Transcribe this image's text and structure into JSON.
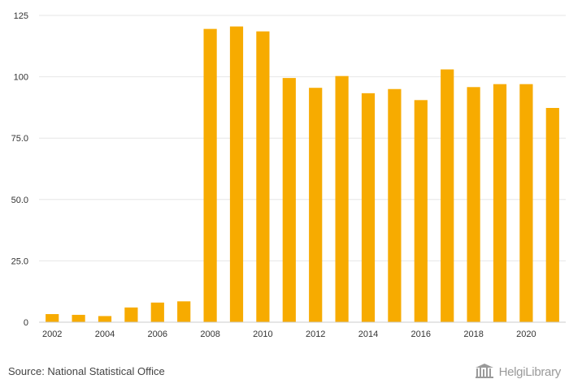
{
  "colors": {
    "bar": "#f7ab00",
    "grid": "#e6e6e6",
    "axis_text": "#333333",
    "brand": "#9a9a9a"
  },
  "chart_data": {
    "type": "bar",
    "title": "",
    "xlabel": "",
    "ylabel": "",
    "categories": [
      "2002",
      "2003",
      "2004",
      "2005",
      "2006",
      "2007",
      "2008",
      "2009",
      "2010",
      "2011",
      "2012",
      "2013",
      "2014",
      "2015",
      "2016",
      "2017",
      "2018",
      "2019",
      "2020",
      "2021"
    ],
    "values": [
      3.3,
      3.0,
      2.5,
      6.0,
      8.0,
      8.5,
      119.5,
      120.5,
      118.5,
      99.5,
      95.5,
      100.3,
      93.3,
      95.0,
      90.5,
      103.0,
      95.8,
      97.0,
      97.0,
      87.3
    ],
    "x_tick_labels": [
      "2002",
      "2004",
      "2006",
      "2008",
      "2010",
      "2012",
      "2014",
      "2016",
      "2018",
      "2020"
    ],
    "y_ticks": [
      {
        "value": 0,
        "label": "0"
      },
      {
        "value": 25,
        "label": "25.0"
      },
      {
        "value": 50,
        "label": "50.0"
      },
      {
        "value": 75,
        "label": "75.0"
      },
      {
        "value": 100,
        "label": "100"
      },
      {
        "value": 125,
        "label": "125"
      }
    ],
    "ylim": [
      0,
      125
    ],
    "grid": true,
    "legend": "none"
  },
  "footer": {
    "source": "Source: National Statistical Office",
    "brand_name": "HelgiLibrary"
  }
}
